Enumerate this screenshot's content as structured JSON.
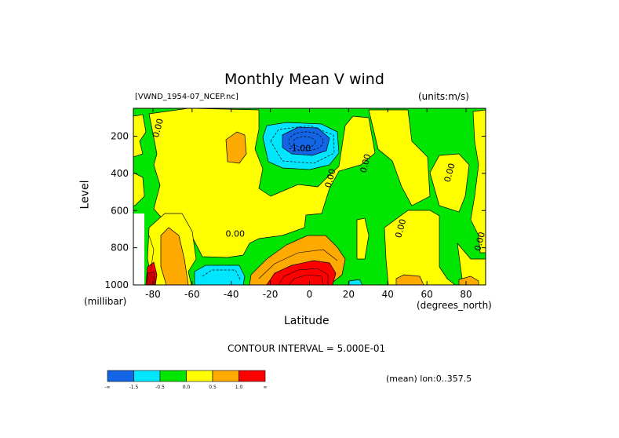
{
  "header": {
    "title": "Monthly Mean V wind",
    "dataset": "[VWND_1954-07_NCEP.nc]",
    "units": "(units:m/s)"
  },
  "footer": {
    "contour_interval": "CONTOUR INTERVAL = 5.000E-01",
    "mean_note": "(mean) lon:0..357.5"
  },
  "chart_data": {
    "type": "contour",
    "title": "Monthly Mean V wind",
    "xlabel": "Latitude",
    "x_units": "(degrees_north)",
    "ylabel": "Level",
    "y_units": "(millibar)",
    "xlim": [
      -90,
      90
    ],
    "ylim": [
      1000,
      50
    ],
    "x_ticks": [
      -80,
      -60,
      -40,
      -20,
      0,
      20,
      40,
      60,
      80
    ],
    "y_ticks": [
      200,
      400,
      600,
      800,
      1000
    ],
    "contour_labels": [
      {
        "text": "0.00",
        "lat": -76,
        "level": 160
      },
      {
        "text": "-1.00",
        "lat": -5,
        "level": 280
      },
      {
        "text": "0.00",
        "lat": 30,
        "level": 350
      },
      {
        "text": "0.00",
        "lat": 12,
        "level": 430
      },
      {
        "text": "0.00",
        "lat": 73,
        "level": 400
      },
      {
        "text": "0.00",
        "lat": 48,
        "level": 700
      },
      {
        "text": "0.00",
        "lat": -38,
        "level": 740
      },
      {
        "text": "0.00",
        "lat": 90,
        "level": 770
      }
    ],
    "colorbar": {
      "colors": [
        "#1464e6",
        "#00e6ff",
        "#00e600",
        "#ffff00",
        "#ffaa00",
        "#ff0000"
      ],
      "labels": [
        "-∞",
        "-1.5",
        "-0.5",
        "0.0",
        "0.5",
        "1.0",
        "∞"
      ]
    }
  }
}
